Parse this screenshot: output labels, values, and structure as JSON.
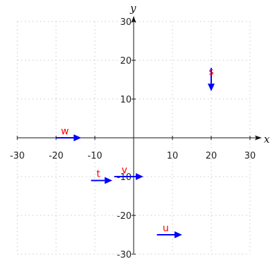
{
  "chart_data": {
    "type": "vector-field",
    "xlabel": "x",
    "ylabel": "y",
    "xlim": [
      -30,
      30
    ],
    "ylim": [
      -30,
      30
    ],
    "x_ticks": [
      -30,
      -20,
      -10,
      10,
      20,
      30
    ],
    "y_ticks": [
      -30,
      -20,
      -10,
      10,
      20,
      30
    ],
    "grid": true,
    "grid_style": "dotted",
    "vectors": [
      {
        "label": "s",
        "x": 20,
        "y": 18,
        "dx": 0,
        "dy": -6
      },
      {
        "label": "w",
        "x": -20,
        "y": 0,
        "dx": 6.5,
        "dy": 0
      },
      {
        "label": "t",
        "x": -11,
        "y": -11,
        "dx": 5.5,
        "dy": 0
      },
      {
        "label": "v",
        "x": -5,
        "y": -10,
        "dx": 7.5,
        "dy": 0
      },
      {
        "label": "u",
        "x": 6,
        "y": -25,
        "dx": 6.5,
        "dy": 0
      }
    ],
    "colors": {
      "vector": "#0000ff",
      "label": "#ff0000",
      "axis": "#111111",
      "grid": "#c8c8c8"
    }
  }
}
